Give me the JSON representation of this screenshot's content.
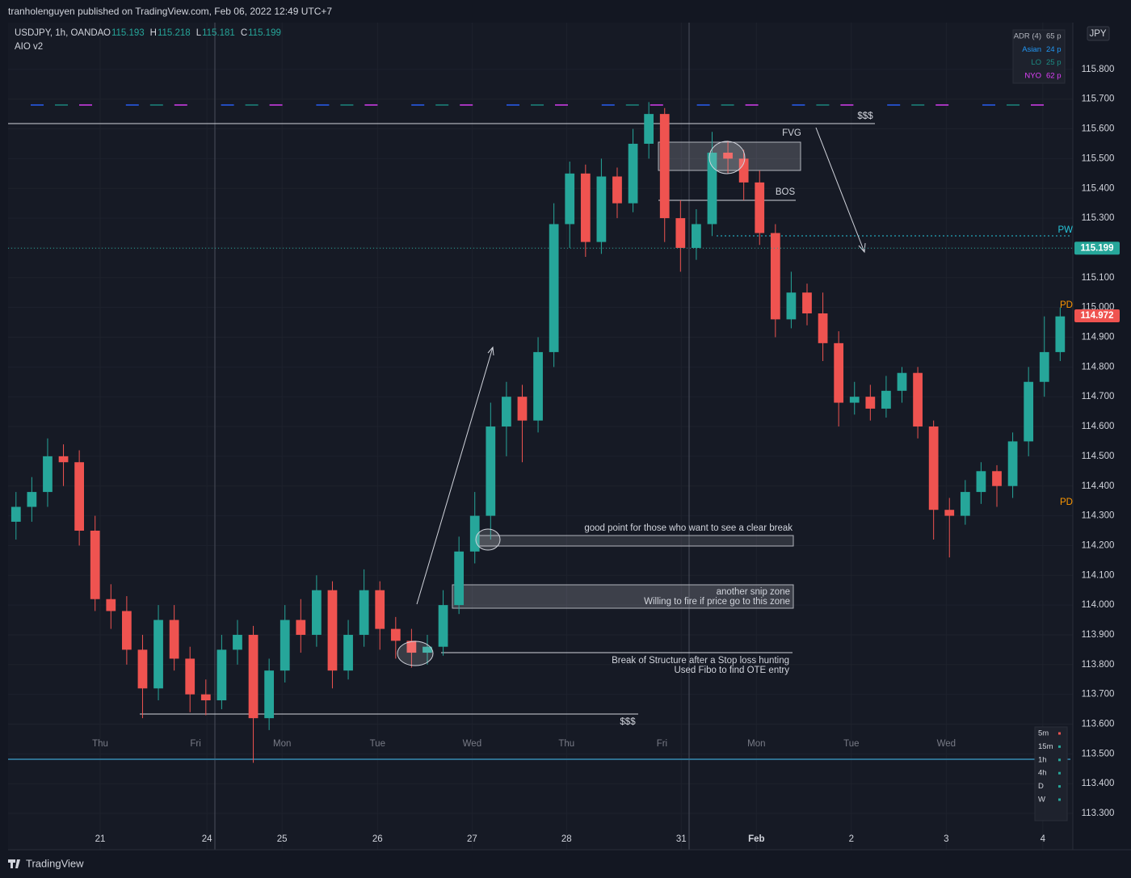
{
  "header": {
    "published": "tranholenguyen published on TradingView.com, Feb 06, 2022 12:49 UTC+7"
  },
  "chart_data": {
    "type": "candlestick",
    "symbol": "USDJPY, 1h, OANDA",
    "legend_values": [
      {
        "label": "O",
        "value": 115.193
      },
      {
        "label": "H",
        "value": 115.218
      },
      {
        "label": "L",
        "value": 115.181
      },
      {
        "label": "C",
        "value": 115.199
      }
    ],
    "indicator": "AIO v2",
    "currency": "JPY",
    "up_color": "#26a69a",
    "down_color": "#ef5350",
    "ylim": [
      113.178,
      115.957
    ],
    "yticks": [
      {
        "value": 113.3,
        "label": "113.300"
      },
      {
        "value": 113.4,
        "label": "113.400"
      },
      {
        "value": 113.5,
        "label": "113.500"
      },
      {
        "value": 113.6,
        "label": "113.600"
      },
      {
        "value": 113.7,
        "label": "113.700"
      },
      {
        "value": 113.8,
        "label": "113.800"
      },
      {
        "value": 113.9,
        "label": "113.900"
      },
      {
        "value": 114.0,
        "label": "114.000"
      },
      {
        "value": 114.1,
        "label": "114.100"
      },
      {
        "value": 114.2,
        "label": "114.200"
      },
      {
        "value": 114.3,
        "label": "114.300"
      },
      {
        "value": 114.4,
        "label": "114.400"
      },
      {
        "value": 114.5,
        "label": "114.500"
      },
      {
        "value": 114.6,
        "label": "114.600"
      },
      {
        "value": 114.7,
        "label": "114.700"
      },
      {
        "value": 114.8,
        "label": "114.800"
      },
      {
        "value": 114.9,
        "label": "114.900"
      },
      {
        "value": 115.0,
        "label": "115.000"
      },
      {
        "value": 115.1,
        "label": "115.100"
      },
      {
        "value": 115.2,
        "label": "115.200"
      },
      {
        "value": 115.3,
        "label": "115.300"
      },
      {
        "value": 115.4,
        "label": "115.400"
      },
      {
        "value": 115.5,
        "label": "115.500"
      },
      {
        "value": 115.6,
        "label": "115.600"
      },
      {
        "value": 115.7,
        "label": "115.700"
      },
      {
        "value": 115.8,
        "label": "115.800"
      }
    ],
    "xlim": [
      -0.5,
      66.8
    ],
    "xticks": [
      {
        "value": 5.32,
        "label": "21"
      },
      {
        "value": 12.07,
        "label": "24"
      },
      {
        "value": 16.82,
        "label": "25"
      },
      {
        "value": 22.85,
        "label": "26"
      },
      {
        "value": 28.83,
        "label": "27"
      },
      {
        "value": 34.8,
        "label": "28"
      },
      {
        "value": 42.05,
        "label": "31"
      },
      {
        "value": 46.8,
        "label": "Feb"
      },
      {
        "value": 52.8,
        "label": "2"
      },
      {
        "value": 58.8,
        "label": "3"
      },
      {
        "value": 64.9,
        "label": "4"
      }
    ],
    "weekday_ticks": [
      {
        "value": 5.32,
        "label": "Thu"
      },
      {
        "value": 11.35,
        "label": "Fri"
      },
      {
        "value": 16.82,
        "label": "Mon"
      },
      {
        "value": 22.85,
        "label": "Tue"
      },
      {
        "value": 28.83,
        "label": "Wed"
      },
      {
        "value": 34.8,
        "label": "Thu"
      },
      {
        "value": 40.83,
        "label": "Fri"
      },
      {
        "value": 46.8,
        "label": "Mon"
      },
      {
        "value": 52.8,
        "label": "Tue"
      },
      {
        "value": 58.8,
        "label": "Wed"
      }
    ],
    "open": [
      114.28,
      114.33,
      114.38,
      114.5,
      114.48,
      114.25,
      114.02,
      113.98,
      113.85,
      113.72,
      113.95,
      113.82,
      113.7,
      113.68,
      113.85,
      113.9,
      113.62,
      113.78,
      113.95,
      113.9,
      114.05,
      113.78,
      113.9,
      114.05,
      113.92,
      113.88,
      113.84,
      113.86,
      114.0,
      114.18,
      114.3,
      114.6,
      114.7,
      114.62,
      114.85,
      115.28,
      115.45,
      115.22,
      115.44,
      115.35,
      115.55,
      115.65,
      115.3,
      115.2,
      115.28,
      115.52,
      115.5,
      115.42,
      115.25,
      114.96,
      115.05,
      114.98,
      114.88,
      114.68,
      114.7,
      114.66,
      114.72,
      114.78,
      114.6,
      114.32,
      114.3,
      114.38,
      114.45,
      114.4,
      114.55,
      114.75,
      114.85
    ],
    "high": [
      114.38,
      114.43,
      114.56,
      114.54,
      114.52,
      114.3,
      114.07,
      114.03,
      113.9,
      114.0,
      114.0,
      113.86,
      113.75,
      113.9,
      113.95,
      113.93,
      113.82,
      114.0,
      114.02,
      114.1,
      114.08,
      113.95,
      114.12,
      114.08,
      113.96,
      113.92,
      113.9,
      114.05,
      114.23,
      114.38,
      114.68,
      114.75,
      114.74,
      114.9,
      115.35,
      115.49,
      115.48,
      115.5,
      115.47,
      115.6,
      115.69,
      115.67,
      115.36,
      115.33,
      115.59,
      115.56,
      115.53,
      115.46,
      115.28,
      115.12,
      115.08,
      115.05,
      114.92,
      114.75,
      114.74,
      114.77,
      114.8,
      114.8,
      114.62,
      114.36,
      114.42,
      114.48,
      114.47,
      114.58,
      114.8,
      114.97,
      115.0
    ],
    "low": [
      114.22,
      114.28,
      114.33,
      114.4,
      114.2,
      113.98,
      113.92,
      113.8,
      113.62,
      113.68,
      113.78,
      113.64,
      113.63,
      113.65,
      113.8,
      113.47,
      113.58,
      113.74,
      113.84,
      113.86,
      113.72,
      113.75,
      113.86,
      113.85,
      113.82,
      113.79,
      113.8,
      113.83,
      113.97,
      114.14,
      114.22,
      114.5,
      114.48,
      114.58,
      114.8,
      115.2,
      115.17,
      115.18,
      115.3,
      115.32,
      115.5,
      115.22,
      115.12,
      115.16,
      115.24,
      115.45,
      115.36,
      115.21,
      114.9,
      114.93,
      114.94,
      114.82,
      114.6,
      114.64,
      114.62,
      114.63,
      114.68,
      114.56,
      114.22,
      114.16,
      114.27,
      114.34,
      114.33,
      114.36,
      114.5,
      114.7,
      114.82
    ],
    "close": [
      114.33,
      114.38,
      114.5,
      114.48,
      114.25,
      114.02,
      113.98,
      113.85,
      113.72,
      113.95,
      113.82,
      113.7,
      113.68,
      113.85,
      113.9,
      113.62,
      113.78,
      113.95,
      113.9,
      114.05,
      113.78,
      113.9,
      114.05,
      113.92,
      113.88,
      113.84,
      113.86,
      114.0,
      114.18,
      114.3,
      114.6,
      114.7,
      114.62,
      114.85,
      115.28,
      115.45,
      115.22,
      115.44,
      115.35,
      115.55,
      115.65,
      115.3,
      115.2,
      115.28,
      115.52,
      115.5,
      115.42,
      115.25,
      114.96,
      115.05,
      114.98,
      114.88,
      114.68,
      114.7,
      114.66,
      114.72,
      114.78,
      114.6,
      114.32,
      114.3,
      114.38,
      114.45,
      114.4,
      114.55,
      114.75,
      114.85,
      114.97
    ],
    "marked_price": 115.199,
    "last_price": 114.972,
    "annotations": {
      "fvg": "FVG",
      "bos": "BOS",
      "liquidity_high": "$$$",
      "liquidity_low": "$$$",
      "pw": "PW",
      "pd_high": "PD",
      "pd_low": "PD",
      "clear_break": "good point for those who want to see a clear break",
      "snip_zone_1": "another snip zone",
      "snip_zone_2": "Willing to fire if price go to this zone",
      "bos_note_1": "Break of Structure after a Stop loss hunting",
      "bos_note_2": "Used Fibo to find OTE entry"
    },
    "adr_table": [
      {
        "label": "ADR (4)",
        "value": "65 p",
        "color": "#b2b5be"
      },
      {
        "label": "Asian",
        "value": "24 p",
        "color": "#2196f3"
      },
      {
        "label": "LO",
        "value": "25 p",
        "color": "#1b8c83"
      },
      {
        "label": "NYO",
        "value": "62 p",
        "color": "#e040fb"
      }
    ],
    "timeframes": [
      "5m",
      "15m",
      "1h",
      "4h",
      "D",
      "W"
    ]
  },
  "footer": {
    "brand": "TradingView"
  }
}
